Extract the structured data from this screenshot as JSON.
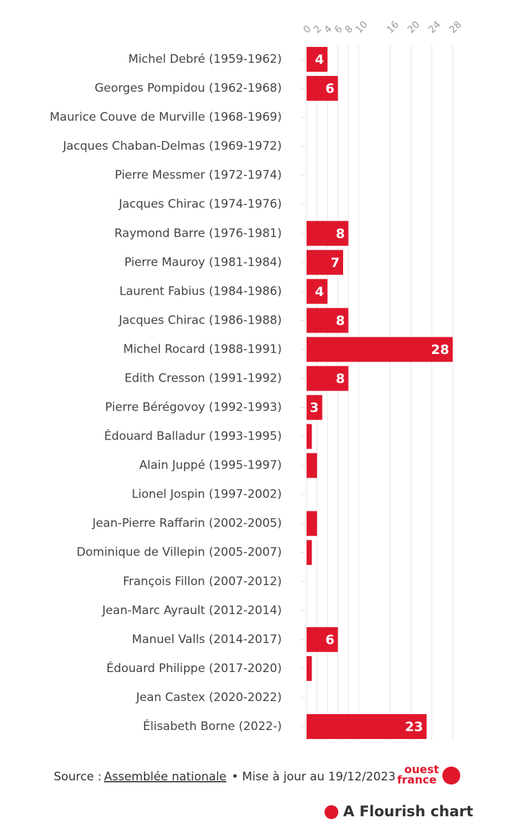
{
  "chart_data": {
    "type": "bar",
    "orientation": "horizontal",
    "categories": [
      "Michel Debré (1959-1962)",
      "Georges Pompidou (1962-1968)",
      "Maurice Couve de Murville (1968-1969)",
      "Jacques Chaban-Delmas (1969-1972)",
      "Pierre Messmer (1972-1974)",
      "Jacques Chirac (1974-1976)",
      "Raymond Barre (1976-1981)",
      "Pierre Mauroy (1981-1984)",
      "Laurent Fabius (1984-1986)",
      "Jacques Chirac (1986-1988)",
      "Michel Rocard (1988-1991)",
      "Edith Cresson (1991-1992)",
      "Pierre Bérégovoy (1992-1993)",
      "Édouard Balladur (1993-1995)",
      "Alain Juppé (1995-1997)",
      "Lionel Jospin (1997-2002)",
      "Jean-Pierre Raffarin (2002-2005)",
      "Dominique de Villepin (2005-2007)",
      "François Fillon (2007-2012)",
      "Jean-Marc Ayrault (2012-2014)",
      "Manuel Valls (2014-2017)",
      "Édouard Philippe (2017-2020)",
      "Jean Castex (2020-2022)",
      "Élisabeth Borne (2022-)"
    ],
    "values": [
      4,
      6,
      0,
      0,
      0,
      0,
      8,
      7,
      4,
      8,
      28,
      8,
      3,
      1,
      2,
      0,
      2,
      1,
      0,
      0,
      6,
      1,
      0,
      23
    ],
    "color": "#e0172c",
    "xlim": [
      0,
      28
    ],
    "xticks": [
      0,
      2,
      4,
      6,
      8,
      10,
      16,
      20,
      24,
      28
    ],
    "grid": true
  },
  "footer": {
    "source_prefix": "Source :",
    "source_link": "Assemblée nationale",
    "source_suffix": "• Mise à jour au 19/12/2023",
    "logo_top": "ouest",
    "logo_bottom": "france",
    "credit": "A Flourish chart"
  }
}
